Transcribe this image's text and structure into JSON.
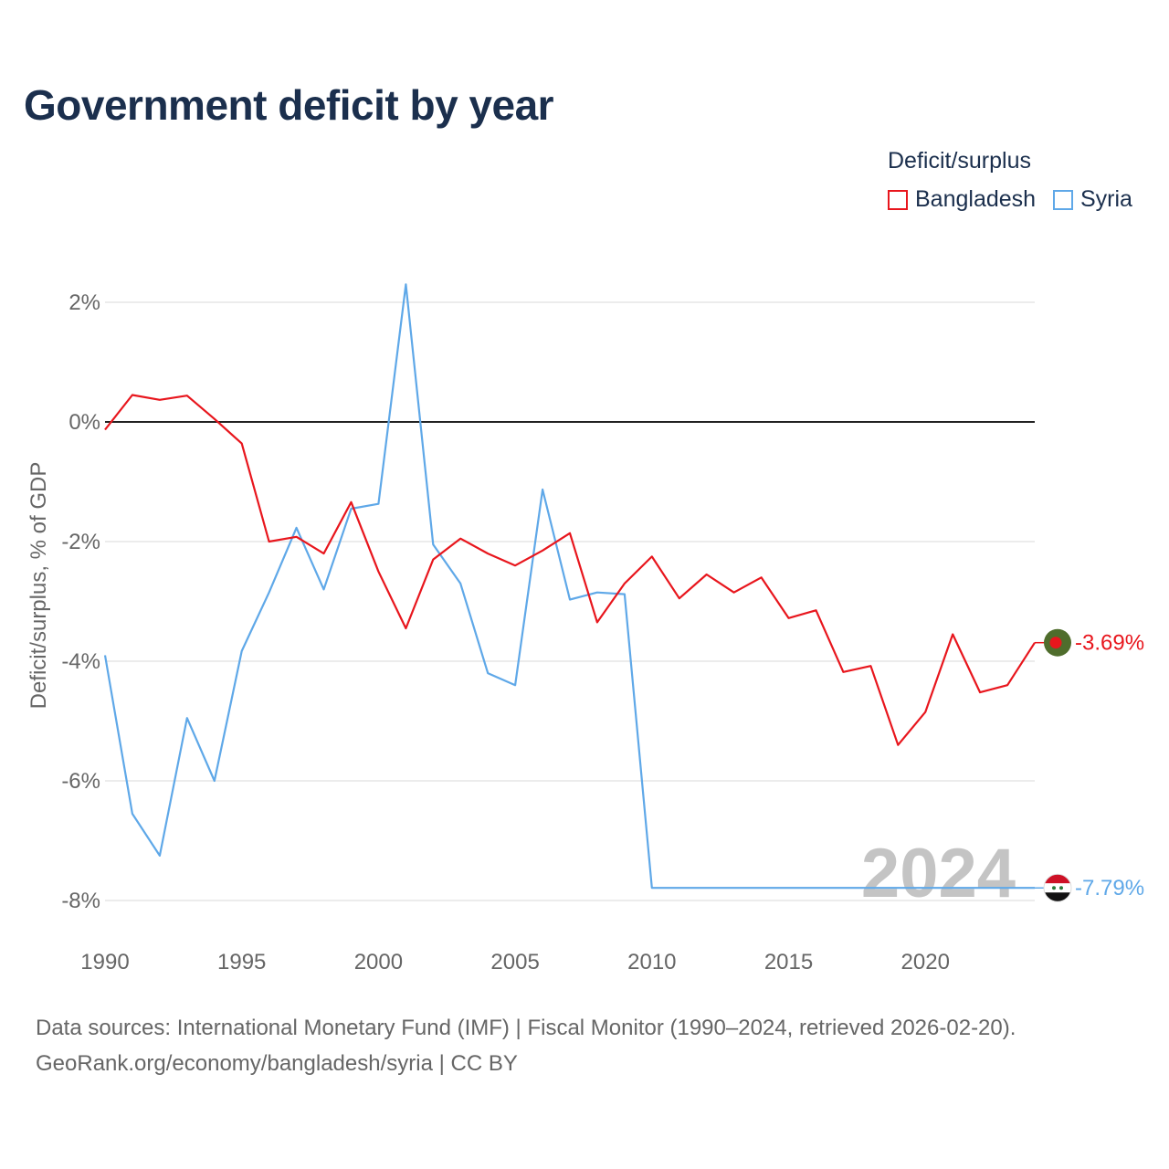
{
  "title": "Government deficit by year",
  "legend": {
    "title": "Deficit/surplus",
    "items": [
      {
        "label": "Bangladesh",
        "color": "#e8161d"
      },
      {
        "label": "Syria",
        "color": "#5fa8e8"
      }
    ]
  },
  "footer": {
    "line1": "Data sources: International Monetary Fund (IMF) | Fiscal Monitor (1990–2024, retrieved 2026-02-20).",
    "line2": "GeoRank.org/economy/bangladesh/syria | CC BY"
  },
  "chart_data": {
    "type": "line",
    "title": "Government deficit by year",
    "xlabel": "",
    "ylabel": "Deficit/surplus, % of GDP",
    "xlim": [
      1990,
      2024
    ],
    "ylim": [
      -8,
      2
    ],
    "x_ticks": [
      1990,
      1995,
      2000,
      2005,
      2010,
      2015,
      2020
    ],
    "y_ticks": [
      2,
      0,
      -2,
      -4,
      -6,
      -8
    ],
    "y_tick_labels": [
      "2%",
      "0%",
      "-2%",
      "-4%",
      "-6%",
      "-8%"
    ],
    "grid": true,
    "zero_line": true,
    "year_watermark": "2024",
    "x": [
      1990,
      1991,
      1992,
      1993,
      1994,
      1995,
      1996,
      1997,
      1998,
      1999,
      2000,
      2001,
      2002,
      2003,
      2004,
      2005,
      2006,
      2007,
      2008,
      2009,
      2010,
      2011,
      2012,
      2013,
      2014,
      2015,
      2016,
      2017,
      2018,
      2019,
      2020,
      2021,
      2022,
      2023,
      2024
    ],
    "series": [
      {
        "name": "Bangladesh",
        "color": "#e8161d",
        "end_label": "-3.69%",
        "values": [
          -0.13,
          0.45,
          0.37,
          0.44,
          0.05,
          -0.36,
          -2.0,
          -1.92,
          -2.2,
          -1.34,
          -2.5,
          -3.45,
          -2.3,
          -1.95,
          -2.2,
          -2.4,
          -2.15,
          -1.86,
          -3.35,
          -2.7,
          -2.25,
          -2.95,
          -2.55,
          -2.85,
          -2.6,
          -3.28,
          -3.15,
          -4.18,
          -4.08,
          -5.4,
          -4.85,
          -3.55,
          -4.52,
          -4.4,
          -3.69
        ]
      },
      {
        "name": "Syria",
        "color": "#5fa8e8",
        "end_label": "-7.79%",
        "values": [
          -3.9,
          -6.55,
          -7.25,
          -4.95,
          -6.0,
          -3.83,
          -2.85,
          -1.77,
          -2.8,
          -1.45,
          -1.37,
          2.3,
          -2.05,
          -2.7,
          -4.2,
          -4.4,
          -1.13,
          -2.97,
          -2.85,
          -2.88,
          -7.79,
          -7.79,
          -7.79,
          -7.79,
          -7.79,
          -7.79,
          -7.79,
          -7.79,
          -7.79,
          -7.79,
          -7.79,
          -7.79,
          -7.79,
          -7.79,
          -7.79
        ]
      }
    ]
  }
}
